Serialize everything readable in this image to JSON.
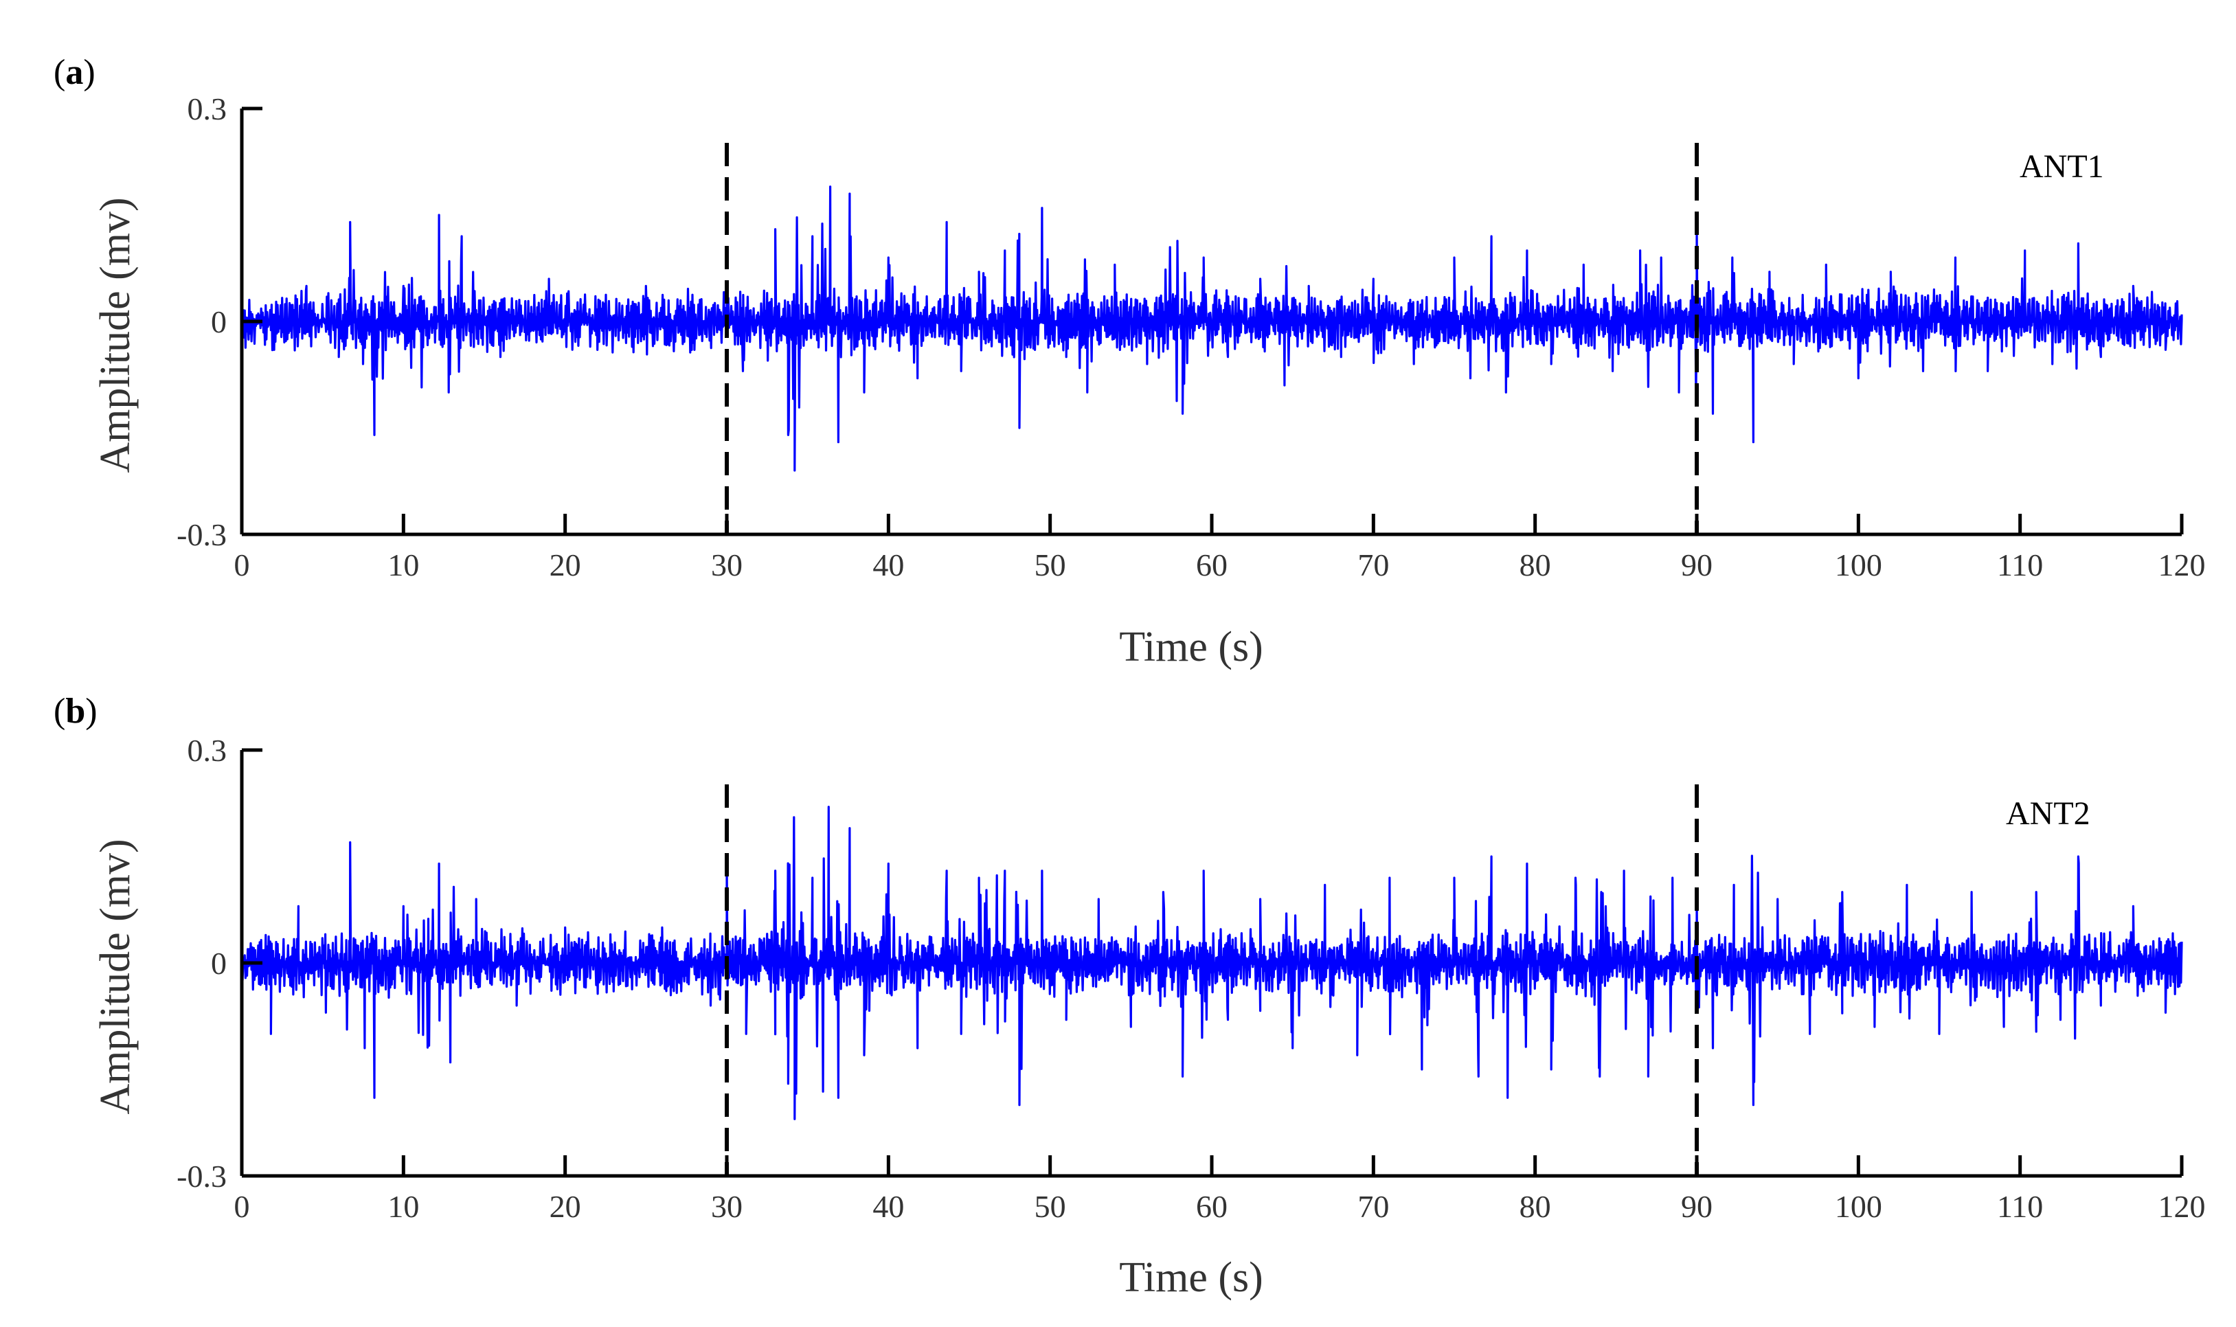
{
  "figure": {
    "panels": [
      "a",
      "b"
    ]
  },
  "chart_data": [
    {
      "type": "line",
      "panel_label": "a",
      "annotation": "ANT1",
      "xlabel": "Time (s)",
      "ylabel": "Amplitude (mv)",
      "xlim": [
        0,
        120
      ],
      "ylim": [
        -0.3,
        0.3
      ],
      "xticks": [
        0,
        10,
        20,
        30,
        40,
        50,
        60,
        70,
        80,
        90,
        100,
        110,
        120
      ],
      "xtick_labels": [
        "0",
        "10",
        "20",
        "30",
        "40",
        "50",
        "60",
        "70",
        "80",
        "90",
        "100",
        "110",
        "120"
      ],
      "yticks": [
        -0.3,
        0,
        0.3
      ],
      "ytick_labels": [
        "-0.3",
        "0",
        "0.3"
      ],
      "vlines": [
        30,
        90
      ],
      "line_color": "#0000ff",
      "vline_color": "#000000",
      "series": [
        {
          "x": [
            0,
            2,
            4,
            6,
            6.7,
            7.5,
            8.2,
            10,
            12.2,
            12.8,
            13.6,
            16,
            19,
            22,
            25,
            28,
            30,
            31,
            33,
            33.8,
            34.2,
            35.3,
            36.4,
            36.9,
            37.6,
            38.5,
            40,
            41.8,
            43.6,
            44.5,
            45.6,
            47.2,
            48.1,
            49.5,
            51,
            52.3,
            54,
            56,
            58.2,
            59.5,
            61,
            63,
            64.5,
            66,
            68,
            70,
            72.5,
            75,
            76,
            77.3,
            78.2,
            79.5,
            81,
            83,
            84.8,
            86.5,
            87.8,
            88.9,
            90,
            91,
            92.2,
            93.5,
            94.5,
            96,
            98,
            100,
            102,
            104,
            106,
            108,
            110.3,
            112,
            113.6,
            115,
            117,
            119,
            120
          ],
          "y": [
            0.02,
            -0.04,
            0.05,
            -0.05,
            0.14,
            -0.06,
            -0.16,
            0.05,
            0.15,
            -0.1,
            0.12,
            -0.05,
            0.06,
            -0.04,
            0.05,
            -0.04,
            0.03,
            -0.07,
            0.13,
            -0.16,
            -0.21,
            0.12,
            0.19,
            -0.17,
            0.18,
            -0.1,
            0.09,
            -0.08,
            0.14,
            -0.07,
            0.07,
            0.1,
            -0.15,
            0.16,
            -0.05,
            -0.1,
            0.08,
            -0.06,
            -0.13,
            0.09,
            -0.05,
            0.06,
            -0.09,
            0.05,
            -0.05,
            0.06,
            -0.06,
            0.09,
            -0.08,
            0.12,
            -0.1,
            0.1,
            -0.06,
            0.08,
            -0.07,
            0.1,
            0.09,
            -0.1,
            0.14,
            -0.13,
            0.09,
            -0.17,
            0.07,
            -0.06,
            0.08,
            -0.08,
            0.07,
            -0.07,
            0.09,
            -0.07,
            0.1,
            -0.06,
            0.11,
            -0.05,
            0.05,
            -0.04,
            0.01
          ]
        }
      ]
    },
    {
      "type": "line",
      "panel_label": "b",
      "annotation": "ANT2",
      "xlabel": "Time (s)",
      "ylabel": "Amplitude (mv)",
      "xlim": [
        0,
        120
      ],
      "ylim": [
        -0.3,
        0.3
      ],
      "xticks": [
        0,
        10,
        20,
        30,
        40,
        50,
        60,
        70,
        80,
        90,
        100,
        110,
        120
      ],
      "xtick_labels": [
        "0",
        "10",
        "20",
        "30",
        "40",
        "50",
        "60",
        "70",
        "80",
        "90",
        "100",
        "110",
        "120"
      ],
      "yticks": [
        -0.3,
        0,
        0.3
      ],
      "ytick_labels": [
        "-0.3",
        "0",
        "0.3"
      ],
      "vlines": [
        30,
        90
      ],
      "line_color": "#0000ff",
      "vline_color": "#000000",
      "series": [
        {
          "x": [
            0,
            1.8,
            3.5,
            5.2,
            6.7,
            7.6,
            8.2,
            10,
            12.2,
            12.9,
            14.5,
            17,
            20,
            23,
            26,
            29,
            30,
            31.2,
            33,
            33.8,
            34.2,
            35.3,
            36.3,
            36.9,
            37.6,
            38.5,
            40,
            41.8,
            43.6,
            44.5,
            45.6,
            47.2,
            48.1,
            49.5,
            51,
            53,
            55,
            57,
            58.2,
            59.5,
            61,
            63,
            65,
            67,
            69,
            71,
            73,
            75,
            76.5,
            77.3,
            78.3,
            79.5,
            81,
            82.5,
            84,
            85.5,
            87,
            88.5,
            90,
            91,
            92.3,
            93.5,
            95,
            97,
            99,
            101,
            103,
            105,
            107,
            109,
            111,
            112.5,
            113.6,
            115,
            117,
            119,
            120
          ],
          "y": [
            0.03,
            -0.1,
            0.08,
            -0.07,
            0.17,
            -0.12,
            -0.19,
            0.08,
            0.14,
            -0.14,
            0.09,
            -0.06,
            0.05,
            -0.04,
            0.05,
            -0.06,
            0.15,
            -0.1,
            0.13,
            -0.17,
            -0.22,
            0.12,
            0.22,
            -0.19,
            0.19,
            -0.13,
            0.14,
            -0.12,
            0.13,
            -0.1,
            0.12,
            0.13,
            -0.2,
            0.13,
            -0.08,
            0.09,
            -0.09,
            0.1,
            -0.16,
            0.13,
            -0.08,
            0.09,
            -0.12,
            0.11,
            -0.13,
            0.12,
            -0.15,
            0.12,
            -0.16,
            0.15,
            -0.19,
            0.14,
            -0.15,
            0.12,
            -0.16,
            0.13,
            -0.16,
            0.12,
            0.1,
            -0.12,
            0.11,
            -0.2,
            0.09,
            -0.1,
            0.1,
            -0.09,
            0.11,
            -0.1,
            0.1,
            -0.09,
            0.1,
            -0.08,
            0.15,
            -0.06,
            0.08,
            -0.07,
            0.03
          ]
        }
      ]
    }
  ]
}
